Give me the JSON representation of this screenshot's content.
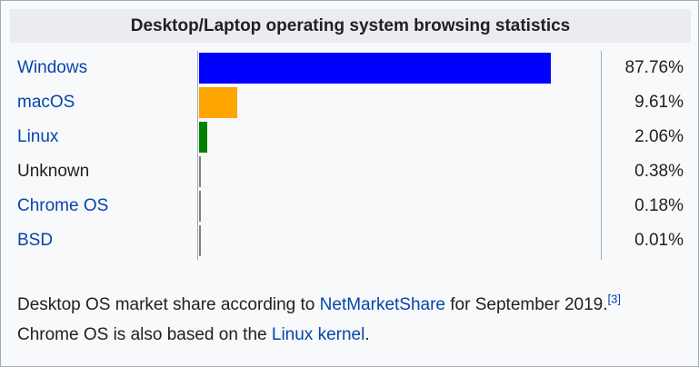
{
  "title": "Desktop/Laptop operating system browsing statistics",
  "colors": {
    "link": "#0645ad",
    "text": "#202122",
    "border": "#a2a9b1",
    "header_bg": "#eaecf0"
  },
  "chart_data": {
    "type": "bar",
    "title": "Desktop/Laptop operating system browsing statistics",
    "categories": [
      "Windows",
      "macOS",
      "Linux",
      "Unknown",
      "Chrome OS",
      "BSD"
    ],
    "values": [
      87.76,
      9.61,
      2.06,
      0.38,
      0.18,
      0.01
    ],
    "value_labels": [
      "87.76%",
      "9.61%",
      "2.06%",
      "0.38%",
      "0.18%",
      "0.01%"
    ],
    "colors": [
      "#0000ff",
      "#ffa500",
      "#008000",
      "#808080",
      "#808080",
      "#808080"
    ],
    "linked": [
      true,
      true,
      true,
      false,
      true,
      true
    ],
    "xlim": [
      0,
      100
    ]
  },
  "caption": {
    "text_before": "Desktop OS market share according to ",
    "link1": "NetMarketShare",
    "text_middle": " for September 2019.",
    "ref": "[3]",
    "text_after": " Chrome OS is also based on the ",
    "link2": "Linux kernel",
    "text_end": "."
  }
}
